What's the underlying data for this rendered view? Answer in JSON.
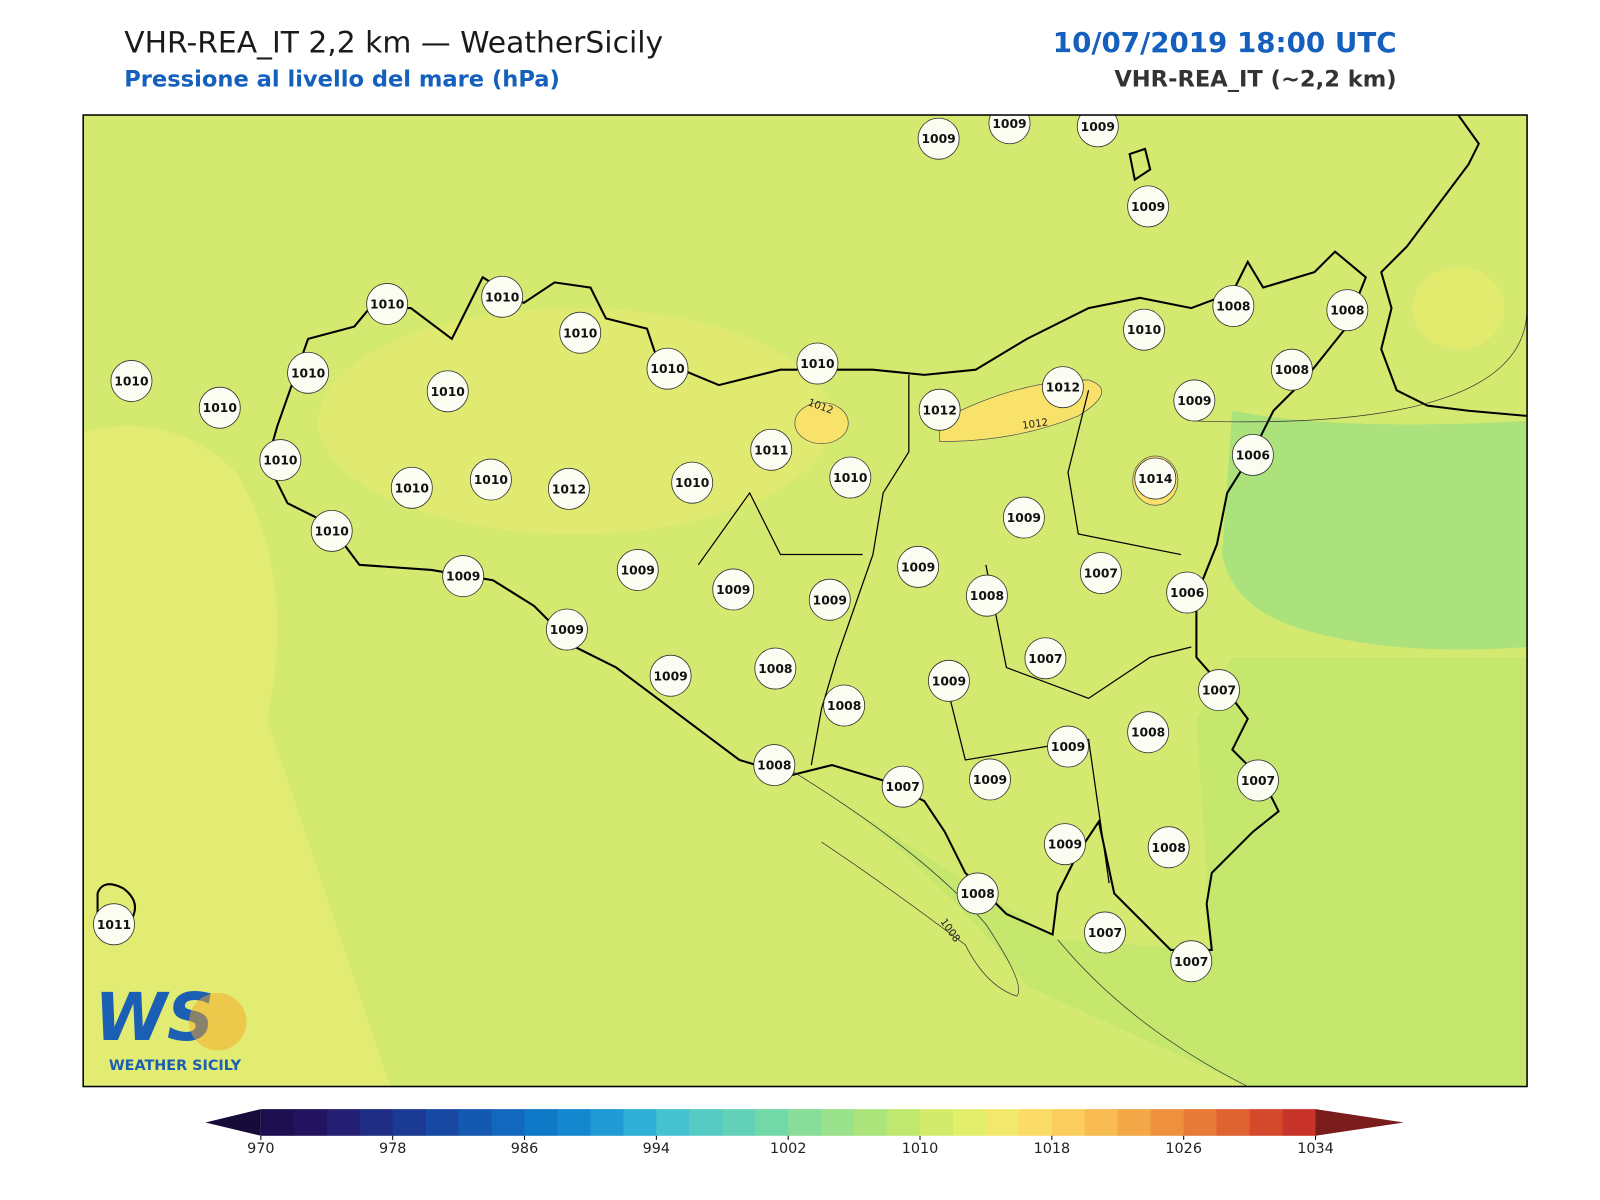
{
  "header": {
    "title": "VHR-REA_IT 2,2 km — WeatherSicily",
    "subtitle": "Pressione al livello del mare (hPa)",
    "valid_time": "10/07/2019 18:00 UTC",
    "model": "VHR-REA_IT (~2,2 km)"
  },
  "map": {
    "stations": [
      1009,
      1009,
      1009,
      1009,
      1010,
      1010,
      1010,
      1010,
      1010,
      1010,
      1008,
      1008,
      1008,
      1010,
      1010,
      1010,
      1010,
      1012,
      1012,
      1009,
      1010,
      1011,
      1006,
      1014,
      1010,
      1010,
      1012,
      1010,
      1010,
      1009,
      1010,
      1009,
      1009,
      1009,
      1009,
      1009,
      1008,
      1007,
      1006,
      1009,
      1009,
      1008,
      1008,
      1009,
      1007,
      1007,
      1009,
      1008,
      1008,
      1007,
      1009,
      1007,
      1009,
      1008,
      1008,
      1007,
      1007,
      1011
    ],
    "contour_labels": [
      "1012",
      "1012",
      "1008"
    ]
  },
  "colorbar": {
    "ticks": [
      970,
      978,
      986,
      994,
      1002,
      1010,
      1018,
      1026,
      1034
    ],
    "colors": [
      "#1d0f4f",
      "#22135e",
      "#241f73",
      "#1f2d85",
      "#1a3a94",
      "#1749a3",
      "#1558b1",
      "#1368bd",
      "#0f79c7",
      "#1488cf",
      "#1f9ad5",
      "#2fb0d6",
      "#45c2d0",
      "#55cbc4",
      "#62d1b8",
      "#73d8a8",
      "#88dd98",
      "#9ae18b",
      "#ade57d",
      "#c0e86e",
      "#d3eb6b",
      "#e3ee6c",
      "#f2e86c",
      "#fbdc66",
      "#fbcd5c",
      "#f7bb52",
      "#f3a747",
      "#ee913e",
      "#e77a36",
      "#de6330",
      "#d4492c",
      "#c83429"
    ],
    "under_color": "#170b3a",
    "over_color": "#7a1c1c"
  },
  "logo": {
    "mark": "WS",
    "name": "WEATHER SICILY"
  }
}
